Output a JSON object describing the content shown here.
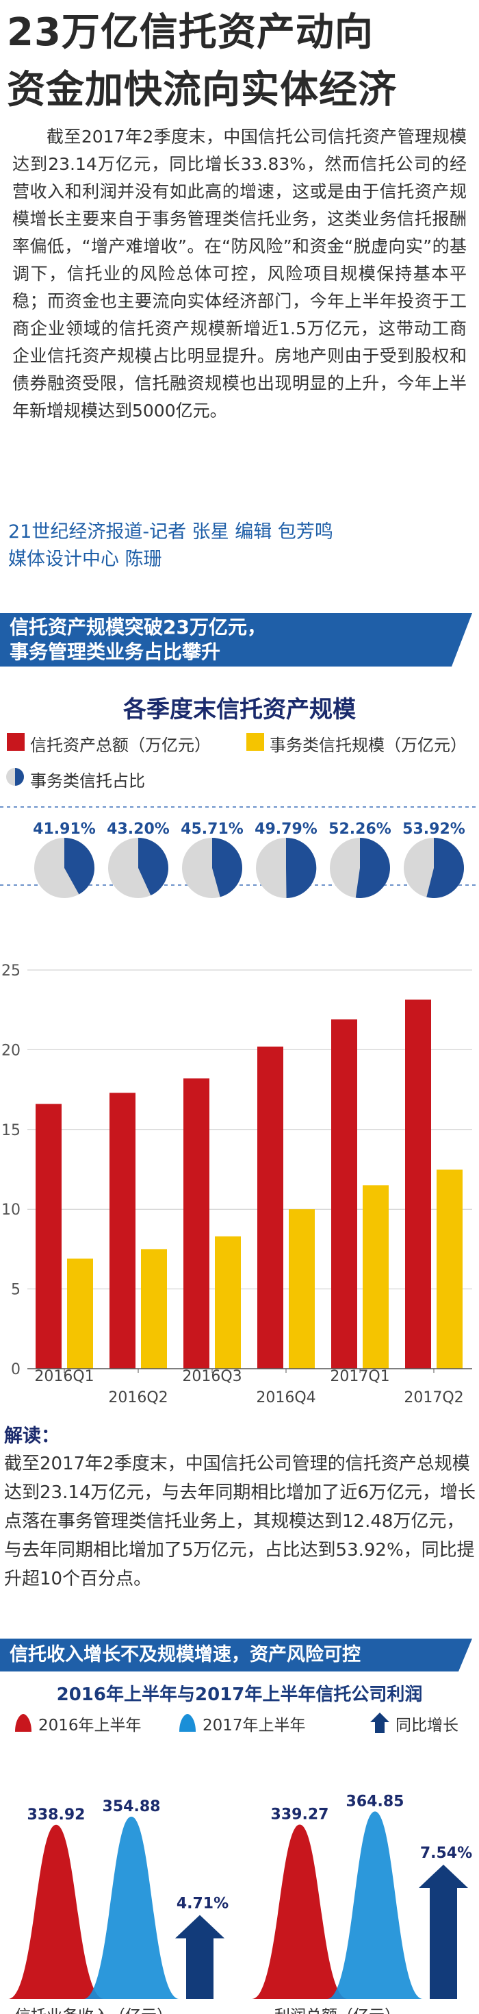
{
  "header": {
    "title_line1": "23万亿信托资产动向",
    "title_line2": "资金加快流向实体经济"
  },
  "intro": "截至2017年2季度末，中国信托公司信托资产管理规模达到23.14万亿元，同比增长33.83%，然而信托公司的经营收入和利润并没有如此高的增速，这或是由于信托资产规模增长主要来自于事务管理类信托业务，这类业务信托报酬率偏低，“增产难增收”。在“防风险”和资金“脱虚向实”的基调下，信托业的风险总体可控，风险项目规模保持基本平稳；而资金也主要流向实体经济部门，今年上半年投资于工商企业领域的信托资产规模新增近1.5万亿元，这带动工商企业信托资产规模占比明显提升。房地产则由于受到股权和债券融资受限，信托融资规模也出现明显的上升，今年上半年新增规模达到5000亿元。",
  "credits": {
    "line1": "21世纪经济报道-记者 张星  编辑 包芳鸣",
    "line2": "媒体设计中心 陈珊"
  },
  "section1": {
    "banner_line1": "信托资产规模突破23万亿元，",
    "banner_line2": "事务管理类业务占比攀升"
  },
  "section2": {
    "banner": "信托收入增长不及规模增速，资产风险可控"
  },
  "readout": {
    "title": "解读：",
    "body": "截至2017年2季度末，中国信托公司管理的信托资产总规模达到23.14万亿元，与去年同期相比增加了近6万亿元，增长点落在事务管理类信托业务上，其规模达到12.48万亿元，与去年同期相比增加了5万亿元，占比达到53.92%，同比提升超10个百分点。"
  },
  "colors": {
    "total_bar": "#c8161d",
    "affairs_bar": "#f5c400",
    "pie_share": "#1f4e96",
    "pie_rest": "#d8d8d8",
    "banner": "#1f5fa8",
    "h1_2016": "#c8161d",
    "h1_2017": "#1a8fd8",
    "growth_arrow": "#123b7a"
  },
  "chart_data": [
    {
      "type": "bar",
      "title": "各季度末信托资产规模",
      "categories": [
        "2016Q1",
        "2016Q2",
        "2016Q3",
        "2016Q4",
        "2017Q1",
        "2017Q2"
      ],
      "series": [
        {
          "name": "信托资产总额（万亿元）",
          "values": [
            16.6,
            17.3,
            18.2,
            20.2,
            21.9,
            23.14
          ]
        },
        {
          "name": "事务类信托规模（万亿元）",
          "values": [
            6.9,
            7.5,
            8.3,
            10.0,
            11.5,
            12.48
          ]
        }
      ],
      "share": {
        "name": "事务类信托占比",
        "values": [
          41.91,
          43.2,
          45.71,
          49.79,
          52.26,
          53.92
        ],
        "labels": [
          "41.91%",
          "43.20%",
          "45.71%",
          "49.79%",
          "52.26%",
          "53.92%"
        ]
      },
      "yticks": [
        "0",
        "5",
        "10",
        "15",
        "20",
        "25"
      ],
      "ylim": [
        0,
        25
      ],
      "xlabel": "",
      "ylabel": ""
    },
    {
      "type": "bar",
      "title": "2016年上半年与2017年上半年信托公司利润",
      "legend": [
        "2016年上半年",
        "2017年上半年",
        "同比增长"
      ],
      "groups": [
        {
          "label": "信托业务收入（亿元）",
          "values": [
            338.92,
            354.88
          ],
          "value_labels": [
            "338.92",
            "354.88"
          ],
          "growth": 4.71,
          "growth_label": "4.71%"
        },
        {
          "label": "利润总额（亿元）",
          "values": [
            339.27,
            364.85
          ],
          "value_labels": [
            "339.27",
            "364.85"
          ],
          "growth": 7.54,
          "growth_label": "7.54%"
        }
      ]
    }
  ]
}
